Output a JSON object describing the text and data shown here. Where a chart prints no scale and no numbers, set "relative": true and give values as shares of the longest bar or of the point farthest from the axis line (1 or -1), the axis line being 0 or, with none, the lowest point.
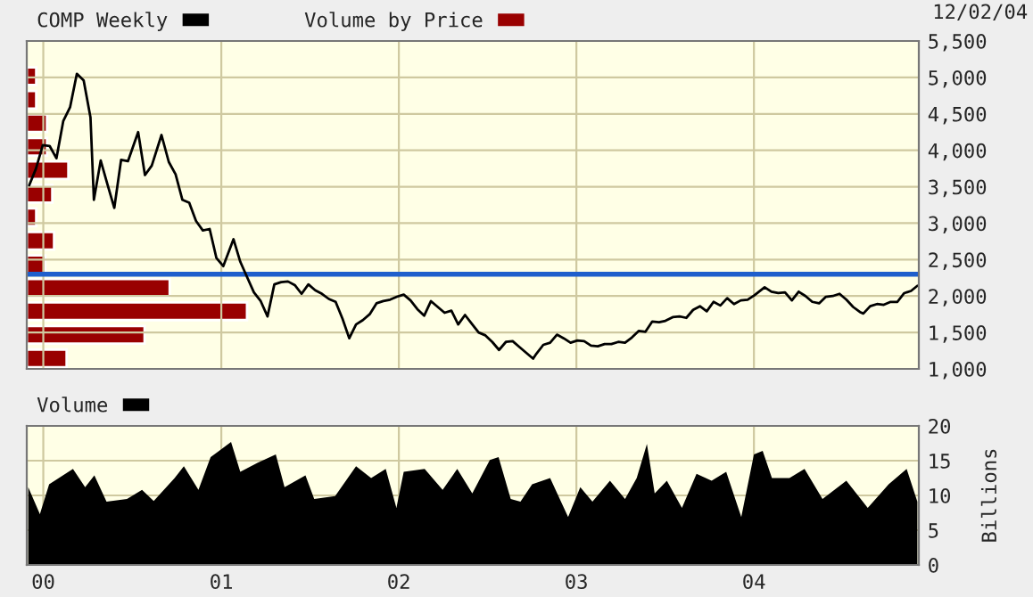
{
  "chart_data": [
    {
      "type": "line",
      "annotations": [
        "12/02/04"
      ],
      "legend": "top left",
      "grid": true,
      "tick_labels": "y",
      "xlim": [
        "1999-11-28",
        "2004-12-05"
      ],
      "xticks": [
        {
          "value": "2000-01-01",
          "label": null
        },
        {
          "value": "2001-01-01",
          "label": null
        },
        {
          "value": "2002-01-01",
          "label": null
        },
        {
          "value": "2003-01-01",
          "label": null
        },
        {
          "value": "2004-01-01",
          "label": null
        }
      ],
      "ylim": [
        1000,
        5500
      ],
      "yticks": [
        {
          "value": 1000,
          "label": "1,000"
        },
        {
          "value": 1500,
          "label": "1,500"
        },
        {
          "value": 2000,
          "label": "2,000"
        },
        {
          "value": 2500,
          "label": "2,500"
        },
        {
          "value": 3000,
          "label": "3,000"
        },
        {
          "value": 3500,
          "label": "3,500"
        },
        {
          "value": 4000,
          "label": "4,000"
        },
        {
          "value": 4500,
          "label": "4,500"
        },
        {
          "value": 5000,
          "label": "5,000"
        },
        {
          "value": 5500,
          "label": "5,500"
        }
      ],
      "ref_lines": [
        {
          "axis": "y",
          "value": 2300,
          "color": "#1f5fcc"
        }
      ],
      "series": [
        {
          "name": "COMP Weekly",
          "color": "#000000",
          "x": [
            "1999-12-03",
            "1999-12-17",
            "1999-12-31",
            "2000-01-14",
            "2000-01-28",
            "2000-02-11",
            "2000-02-25",
            "2000-03-10",
            "2000-03-24",
            "2000-04-07",
            "2000-04-14",
            "2000-04-28",
            "2000-05-12",
            "2000-05-26",
            "2000-06-09",
            "2000-06-23",
            "2000-07-14",
            "2000-07-28",
            "2000-08-11",
            "2000-08-31",
            "2000-09-15",
            "2000-09-29",
            "2000-10-13",
            "2000-10-27",
            "2000-11-10",
            "2000-11-24",
            "2000-12-08",
            "2000-12-22",
            "2001-01-05",
            "2001-01-26",
            "2001-02-09",
            "2001-02-23",
            "2001-03-09",
            "2001-03-23",
            "2001-04-06",
            "2001-04-20",
            "2001-05-04",
            "2001-05-18",
            "2001-06-01",
            "2001-06-15",
            "2001-06-29",
            "2001-07-13",
            "2001-07-27",
            "2001-08-10",
            "2001-08-24",
            "2001-09-07",
            "2001-09-21",
            "2001-10-05",
            "2001-10-19",
            "2001-11-02",
            "2001-11-16",
            "2001-11-30",
            "2001-12-14",
            "2001-12-28",
            "2002-01-11",
            "2002-01-25",
            "2002-02-08",
            "2002-02-22",
            "2002-03-08",
            "2002-03-22",
            "2002-04-05",
            "2002-04-19",
            "2002-05-03",
            "2002-05-17",
            "2002-05-31",
            "2002-06-14",
            "2002-06-28",
            "2002-07-12",
            "2002-07-26",
            "2002-08-09",
            "2002-08-23",
            "2002-09-06",
            "2002-09-20",
            "2002-10-04",
            "2002-10-11",
            "2002-10-25",
            "2002-11-08",
            "2002-11-22",
            "2002-12-06",
            "2002-12-20",
            "2003-01-03",
            "2003-01-17",
            "2003-01-31",
            "2003-02-14",
            "2003-02-28",
            "2003-03-14",
            "2003-03-28",
            "2003-04-11",
            "2003-04-25",
            "2003-05-09",
            "2003-05-23",
            "2003-06-06",
            "2003-06-20",
            "2003-07-03",
            "2003-07-18",
            "2003-08-01",
            "2003-08-15",
            "2003-08-29",
            "2003-09-12",
            "2003-09-26",
            "2003-10-10",
            "2003-10-24",
            "2003-11-07",
            "2003-11-21",
            "2003-12-05",
            "2003-12-19",
            "2004-01-02",
            "2004-01-23",
            "2004-02-06",
            "2004-02-20",
            "2004-03-05",
            "2004-03-19",
            "2004-04-02",
            "2004-04-16",
            "2004-04-30",
            "2004-05-14",
            "2004-05-28",
            "2004-06-11",
            "2004-06-25",
            "2004-07-09",
            "2004-07-23",
            "2004-08-06",
            "2004-08-13",
            "2004-08-27",
            "2004-09-10",
            "2004-09-24",
            "2004-10-08",
            "2004-10-22",
            "2004-11-05",
            "2004-11-19",
            "2004-12-02"
          ],
          "values": [
            3520,
            3750,
            4070,
            4060,
            3890,
            4400,
            4590,
            5050,
            4960,
            4450,
            3320,
            3860,
            3530,
            3210,
            3870,
            3850,
            4250,
            3660,
            3790,
            4210,
            3840,
            3670,
            3320,
            3280,
            3030,
            2900,
            2920,
            2520,
            2410,
            2780,
            2470,
            2260,
            2050,
            1930,
            1720,
            2160,
            2190,
            2200,
            2150,
            2030,
            2160,
            2080,
            2030,
            1960,
            1920,
            1690,
            1420,
            1610,
            1670,
            1750,
            1900,
            1930,
            1950,
            1990,
            2020,
            1940,
            1820,
            1730,
            1930,
            1850,
            1770,
            1800,
            1610,
            1740,
            1620,
            1500,
            1460,
            1370,
            1260,
            1370,
            1380,
            1300,
            1220,
            1140,
            1210,
            1330,
            1360,
            1470,
            1420,
            1360,
            1390,
            1380,
            1320,
            1310,
            1340,
            1340,
            1370,
            1360,
            1430,
            1520,
            1510,
            1650,
            1640,
            1660,
            1710,
            1720,
            1700,
            1810,
            1860,
            1790,
            1920,
            1870,
            1970,
            1890,
            1940,
            1950,
            2010,
            2120,
            2060,
            2040,
            2050,
            1940,
            2060,
            2000,
            1920,
            1900,
            1990,
            2000,
            2030,
            1950,
            1850,
            1780,
            1760,
            1860,
            1890,
            1880,
            1920,
            1920,
            2040,
            2070,
            2140
          ]
        }
      ]
    },
    {
      "type": "bar",
      "orientation": "horizontal",
      "relative": true,
      "legend": "top",
      "categories": [
        null,
        null,
        null,
        null,
        null,
        null,
        null,
        null,
        null,
        null,
        null,
        null,
        null
      ],
      "series": [
        {
          "name": "Volume by Price",
          "color": "#990000",
          "values": [
            0.043,
            0.043,
            0.092,
            0.092,
            0.189,
            0.116,
            0.043,
            0.124,
            0.084,
            0.649,
            1,
            0.535,
            0.181
          ]
        }
      ]
    },
    {
      "type": "area",
      "legend": "top left",
      "grid": true,
      "ylabel": "Billions",
      "xlim": [
        "1999-11-28",
        "2004-12-05"
      ],
      "xticks": [
        {
          "value": "2000-01-01",
          "label": "00"
        },
        {
          "value": "2001-01-01",
          "label": "01"
        },
        {
          "value": "2002-01-01",
          "label": "02"
        },
        {
          "value": "2003-01-01",
          "label": "03"
        },
        {
          "value": "2004-01-01",
          "label": "04"
        }
      ],
      "ylim": [
        0,
        20
      ],
      "yticks": [
        0,
        5,
        10,
        15,
        20
      ],
      "series": [
        {
          "name": "Volume",
          "color": "#000000",
          "x": [
            "1999-12-01",
            "1999-12-25",
            "2000-01-13",
            "2000-03-02",
            "2000-03-27",
            "2000-04-15",
            "2000-05-10",
            "2000-06-21",
            "2000-07-22",
            "2000-08-15",
            "2000-09-27",
            "2000-10-16",
            "2000-11-15",
            "2000-12-10",
            "2001-01-21",
            "2001-02-09",
            "2001-03-17",
            "2001-04-23",
            "2001-05-11",
            "2001-06-23",
            "2001-07-11",
            "2001-08-23",
            "2001-10-05",
            "2001-11-05",
            "2001-12-05",
            "2001-12-27",
            "2002-01-11",
            "2002-02-23",
            "2002-04-01",
            "2002-05-01",
            "2002-06-01",
            "2002-07-07",
            "2002-07-25",
            "2002-08-19",
            "2002-09-08",
            "2002-10-02",
            "2002-11-08",
            "2002-12-15",
            "2003-01-09",
            "2003-02-03",
            "2003-03-11",
            "2003-04-11",
            "2003-05-05",
            "2003-05-26",
            "2003-06-11",
            "2003-07-06",
            "2003-08-06",
            "2003-09-05",
            "2003-10-06",
            "2003-11-05",
            "2003-12-06",
            "2004-01-01",
            "2004-01-19",
            "2004-02-07",
            "2004-03-14",
            "2004-04-14",
            "2004-05-21",
            "2004-07-09",
            "2004-08-22",
            "2004-10-04",
            "2004-11-10",
            "2004-12-02"
          ],
          "values": [
            11.2,
            7.3,
            11.6,
            13.8,
            11.2,
            12.9,
            9.1,
            9.5,
            10.8,
            9.2,
            12.5,
            14.2,
            10.8,
            15.5,
            17.7,
            13.4,
            14.7,
            15.9,
            11.2,
            12.9,
            9.5,
            9.9,
            14.2,
            12.5,
            13.8,
            8.2,
            13.4,
            13.8,
            10.8,
            13.8,
            10.3,
            15.1,
            15.5,
            9.5,
            9.1,
            11.6,
            12.5,
            6.9,
            11.2,
            9.1,
            12.1,
            9.5,
            12.5,
            17.4,
            10.3,
            12.1,
            8.2,
            13.1,
            12.1,
            13.4,
            6.9,
            15.9,
            16.4,
            12.5,
            12.5,
            13.8,
            9.5,
            12.1,
            8.2,
            11.6,
            13.8,
            9.1
          ]
        }
      ]
    }
  ]
}
